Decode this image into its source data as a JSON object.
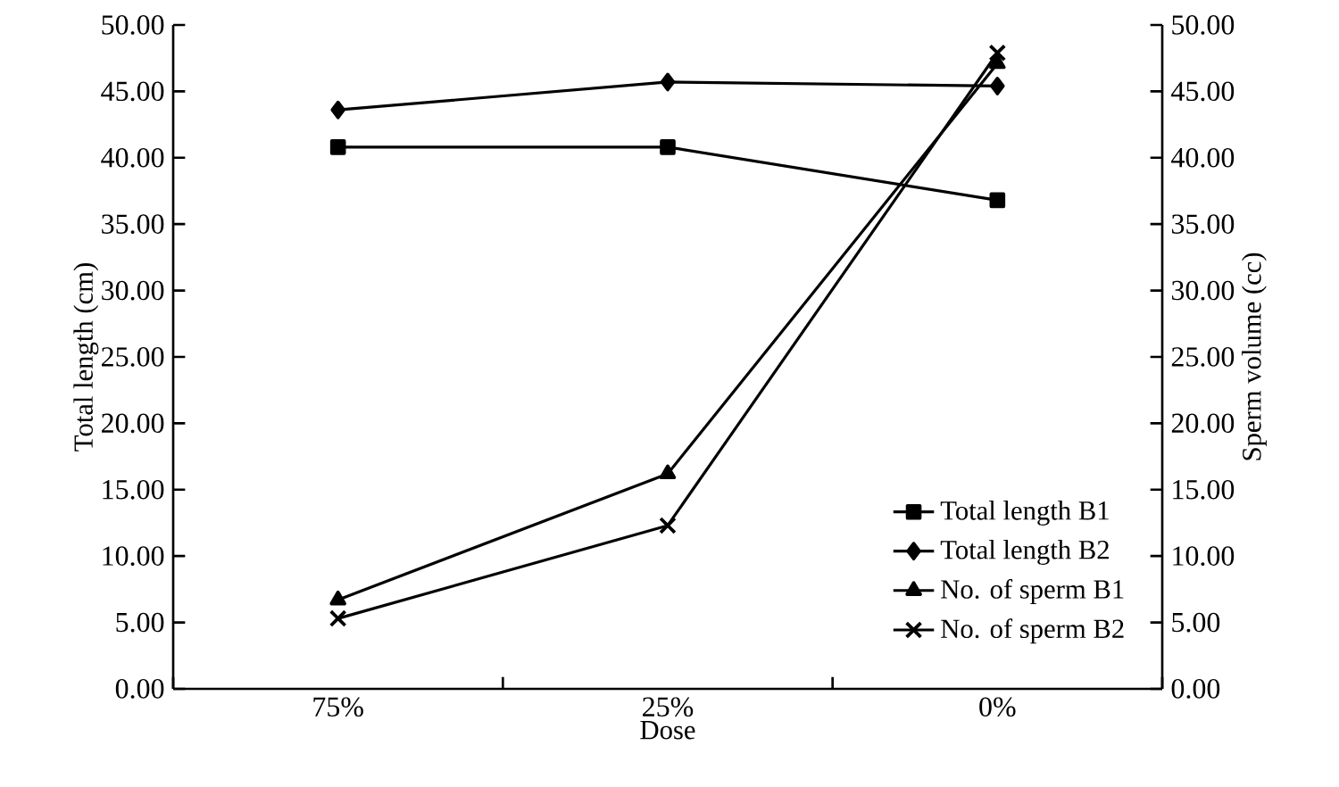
{
  "chart_data": {
    "type": "line",
    "xlabel": "Dose",
    "ylabel": "Total length (cm)",
    "y2label": "Sperm volume (cc)",
    "categories": [
      "75%",
      "25%",
      "0%"
    ],
    "series": [
      {
        "name": "Total length B1",
        "color": "#000000",
        "marker": "square",
        "values": [
          40.8,
          40.8,
          36.8
        ]
      },
      {
        "name": "Total length B2",
        "color": "#000000",
        "marker": "diamond",
        "values": [
          43.6,
          45.7,
          45.4
        ]
      },
      {
        "name": "No. of sperm B1",
        "color": "#000000",
        "marker": "triangle",
        "values": [
          6.7,
          16.2,
          47.1
        ]
      },
      {
        "name": "No. of sperm B2",
        "color": "#000000",
        "marker": "cross",
        "values": [
          5.3,
          12.3,
          47.9
        ]
      }
    ],
    "ylim": [
      0,
      50
    ],
    "yticks": [
      {
        "value": 0,
        "label": "0.00"
      },
      {
        "value": 5,
        "label": "5.00"
      },
      {
        "value": 10,
        "label": "10.00"
      },
      {
        "value": 15,
        "label": "15.00"
      },
      {
        "value": 20,
        "label": "20.00"
      },
      {
        "value": 25,
        "label": "25.00"
      },
      {
        "value": 30,
        "label": "30.00"
      },
      {
        "value": 35,
        "label": "35.00"
      },
      {
        "value": 40,
        "label": "40.00"
      },
      {
        "value": 45,
        "label": "45.00"
      },
      {
        "value": 50,
        "label": "50.00"
      }
    ],
    "y2lim": [
      0,
      50
    ],
    "y2ticks": [
      {
        "value": 0,
        "label": "0.00"
      },
      {
        "value": 5,
        "label": "5.00"
      },
      {
        "value": 10,
        "label": "10.00"
      },
      {
        "value": 15,
        "label": "15.00"
      },
      {
        "value": 20,
        "label": "20.00"
      },
      {
        "value": 25,
        "label": "25.00"
      },
      {
        "value": 30,
        "label": "30.00"
      },
      {
        "value": 35,
        "label": "35.00"
      },
      {
        "value": 40,
        "label": "40.00"
      },
      {
        "value": 45,
        "label": "45.00"
      },
      {
        "value": 50,
        "label": "50.00"
      }
    ],
    "grid": false,
    "legend": "bottom right",
    "line_style": "solid"
  }
}
